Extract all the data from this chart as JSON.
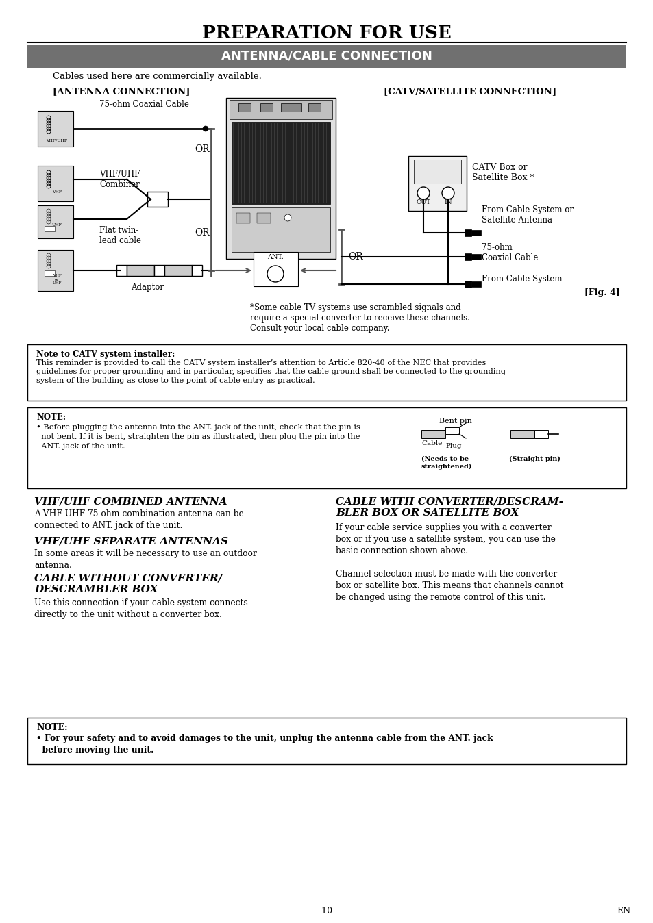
{
  "page_title": "PREPARATION FOR USE",
  "section_title": "ANTENNA/CABLE CONNECTION",
  "subtitle": "Cables used here are commercially available.",
  "antenna_header": "[ANTENNA CONNECTION]",
  "catv_header": "[CATV/SATELLITE CONNECTION]",
  "catv_box_label": "CATV Box or\nSatellite Box *",
  "fig_label": "[Fig. 4]",
  "asterisk_note": "*Some cable TV systems use scrambled signals and\nrequire a special converter to receive these channels.\nConsult your local cable company.",
  "note_catv_title": "Note to CATV system installer:",
  "note_catv_body": "This reminder is provided to call the CATV system installer’s attention to Article 820-40 of the NEC that provides\nguidelines for proper grounding and in particular, specifies that the cable ground shall be connected to the grounding\nsystem of the building as close to the point of cable entry as practical.",
  "note2_title": "NOTE:",
  "note2_bullet": "• Before plugging the antenna into the ANT. jack of the unit, check that the pin is\n  not bent. If it is bent, straighten the pin as illustrated, then plug the pin into the\n  ANT. jack of the unit.",
  "bent_pin_label": "Bent pin",
  "cable_label": "Cable",
  "plug_label": "Plug",
  "needs_label": "(Needs to be\nstraightened)",
  "straight_label": "(Straight pin)",
  "section1_title": "VHF/UHF COMBINED ANTENNA",
  "section1_body": "A VHF UHF 75 ohm combination antenna can be\nconnected to ANT. jack of the unit.",
  "section2_title": "VHF/UHF SEPARATE ANTENNAS",
  "section2_body": "In some areas it will be necessary to use an outdoor\nantenna.",
  "section3_title": "CABLE WITHOUT CONVERTER/\nDESCRAMBLER BOX",
  "section3_body": "Use this connection if your cable system connects\ndirectly to the unit without a converter box.",
  "section4_title": "CABLE WITH CONVERTER/DESCRAM-\nBLER BOX OR SATELLITE BOX",
  "section4_body": "If your cable service supplies you with a converter\nbox or if you use a satellite system, you can use the\nbasic connection shown above.\n\nChannel selection must be made with the converter\nbox or satellite box. This means that channels cannot\nbe changed using the remote control of this unit.",
  "final_note_title": "NOTE:",
  "final_note_body": "• For your safety and to avoid damages to the unit, unplug the antenna cable from the ANT. jack\n  before moving the unit.",
  "page_number": "- 10 -",
  "en_label": "EN",
  "bg_color": "#ffffff"
}
